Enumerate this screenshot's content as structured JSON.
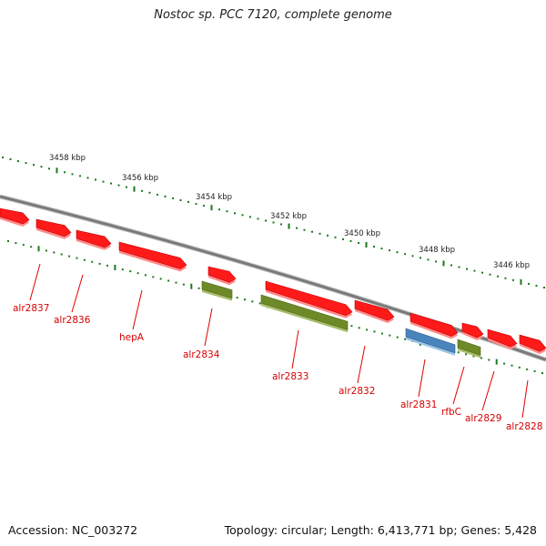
{
  "title": "Nostoc sp. PCC 7120, complete genome",
  "footer": {
    "accession": "Accession: NC_003272",
    "summary": "Topology: circular; Length: 6,413,771 bp; Genes: 5,428"
  },
  "colors": {
    "gene_red": "#ff1a1a",
    "gene_olive": "#6e8a28",
    "gene_blue": "#4a84bc",
    "tick_green": "#1a7a1a",
    "backbone": "#7a7a7a"
  },
  "ruler": {
    "labels": [
      "3458 kbp",
      "3456 kbp",
      "3454 kbp",
      "3452 kbp",
      "3450 kbp",
      "3448 kbp",
      "3446 kbp"
    ]
  },
  "genes": [
    {
      "label": "alr2837"
    },
    {
      "label": "alr2836"
    },
    {
      "label": "hepA"
    },
    {
      "label": "alr2834"
    },
    {
      "label": "alr2833"
    },
    {
      "label": "alr2832"
    },
    {
      "label": "alr2831"
    },
    {
      "label": "rfbC"
    },
    {
      "label": "alr2829"
    },
    {
      "label": "alr2828"
    }
  ]
}
